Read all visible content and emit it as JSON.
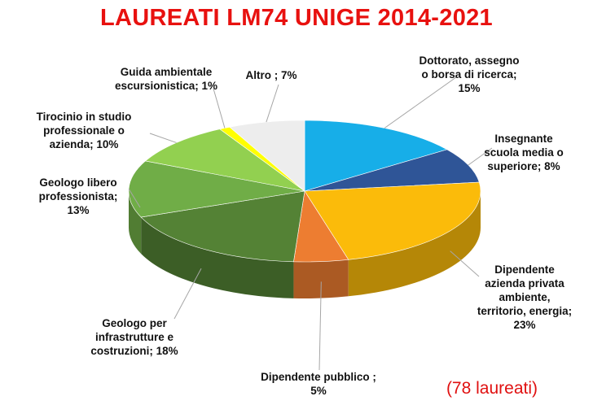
{
  "chart_data": {
    "type": "pie",
    "title": "LAUREATI LM74 UNIGE 2014-2021",
    "note": "(78 laureati)",
    "slices": [
      {
        "label": "Dottorato, assegno o borsa di ricerca",
        "value": 15,
        "display": "Dottorato, assegno\no borsa di ricerca;\n15%",
        "color": "#17aee8"
      },
      {
        "label": "Insegnante scuola media o superiore",
        "value": 8,
        "display": "Insegnante\nscuola media o\nsuperiore; 8%",
        "color": "#2f5597"
      },
      {
        "label": "Dipendente azienda privata ambiente, territorio, energia",
        "value": 23,
        "display": "Dipendente\nazienda privata\nambiente,\nterritorio, energia;\n23%",
        "color": "#fbbb0a"
      },
      {
        "label": "Dipendente pubblico",
        "value": 5,
        "display": "Dipendente pubblico ;\n5%",
        "color": "#ed7d31"
      },
      {
        "label": "Geologo per infrastrutture e costruzioni",
        "value": 18,
        "display": "Geologo per\ninfrastrutture e\ncostruzioni; 18%",
        "color": "#548235"
      },
      {
        "label": "Geologo libero professionista",
        "value": 13,
        "display": "Geologo libero\nprofessionista;\n13%",
        "color": "#70ad47"
      },
      {
        "label": "Tirocinio in studio professionale o azienda",
        "value": 10,
        "display": "Tirocinio in studio\nprofessionale o\nazienda; 10%",
        "color": "#92d050"
      },
      {
        "label": "Guida ambientale escursionistica",
        "value": 1,
        "display": "Guida ambientale\nescursionistica; 1%",
        "color": "#ffff00"
      },
      {
        "label": "Altro",
        "value": 7,
        "display": "Altro ; 7%",
        "color": "#ededed"
      }
    ]
  }
}
